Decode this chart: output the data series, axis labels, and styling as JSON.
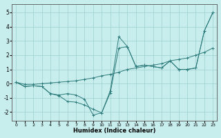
{
  "xlabel": "Humidex (Indice chaleur)",
  "ylabel": "",
  "background_color": "#c8eded",
  "grid_color": "#9ecece",
  "line_color": "#2e7b7b",
  "xlim": [
    -0.5,
    23.5
  ],
  "ylim": [
    -2.6,
    5.6
  ],
  "xticks": [
    0,
    1,
    2,
    3,
    4,
    5,
    6,
    7,
    8,
    9,
    10,
    11,
    12,
    13,
    14,
    15,
    16,
    17,
    18,
    19,
    20,
    21,
    22,
    23
  ],
  "yticks": [
    -2,
    -1,
    0,
    1,
    2,
    3,
    4,
    5
  ],
  "series": [
    [
      0.1,
      -0.2,
      -0.15,
      -0.2,
      -0.7,
      -0.8,
      -0.7,
      -0.8,
      -1.1,
      -2.2,
      -2.05,
      -0.5,
      3.3,
      2.6,
      1.2,
      1.3,
      1.2,
      1.1,
      1.6,
      1.0,
      1.0,
      1.1,
      3.7,
      5.0
    ],
    [
      0.1,
      -0.2,
      -0.15,
      -0.2,
      -0.7,
      -0.85,
      -1.25,
      -1.3,
      -1.5,
      -1.8,
      -2.05,
      -0.65,
      2.5,
      2.6,
      1.2,
      1.3,
      1.2,
      1.1,
      1.6,
      1.0,
      1.0,
      1.1,
      3.7,
      5.0
    ],
    [
      0.1,
      -0.05,
      -0.05,
      0.0,
      0.05,
      0.1,
      0.15,
      0.2,
      0.3,
      0.4,
      0.55,
      0.65,
      0.8,
      1.0,
      1.1,
      1.2,
      1.3,
      1.4,
      1.6,
      1.7,
      1.8,
      2.0,
      2.2,
      2.5
    ]
  ]
}
